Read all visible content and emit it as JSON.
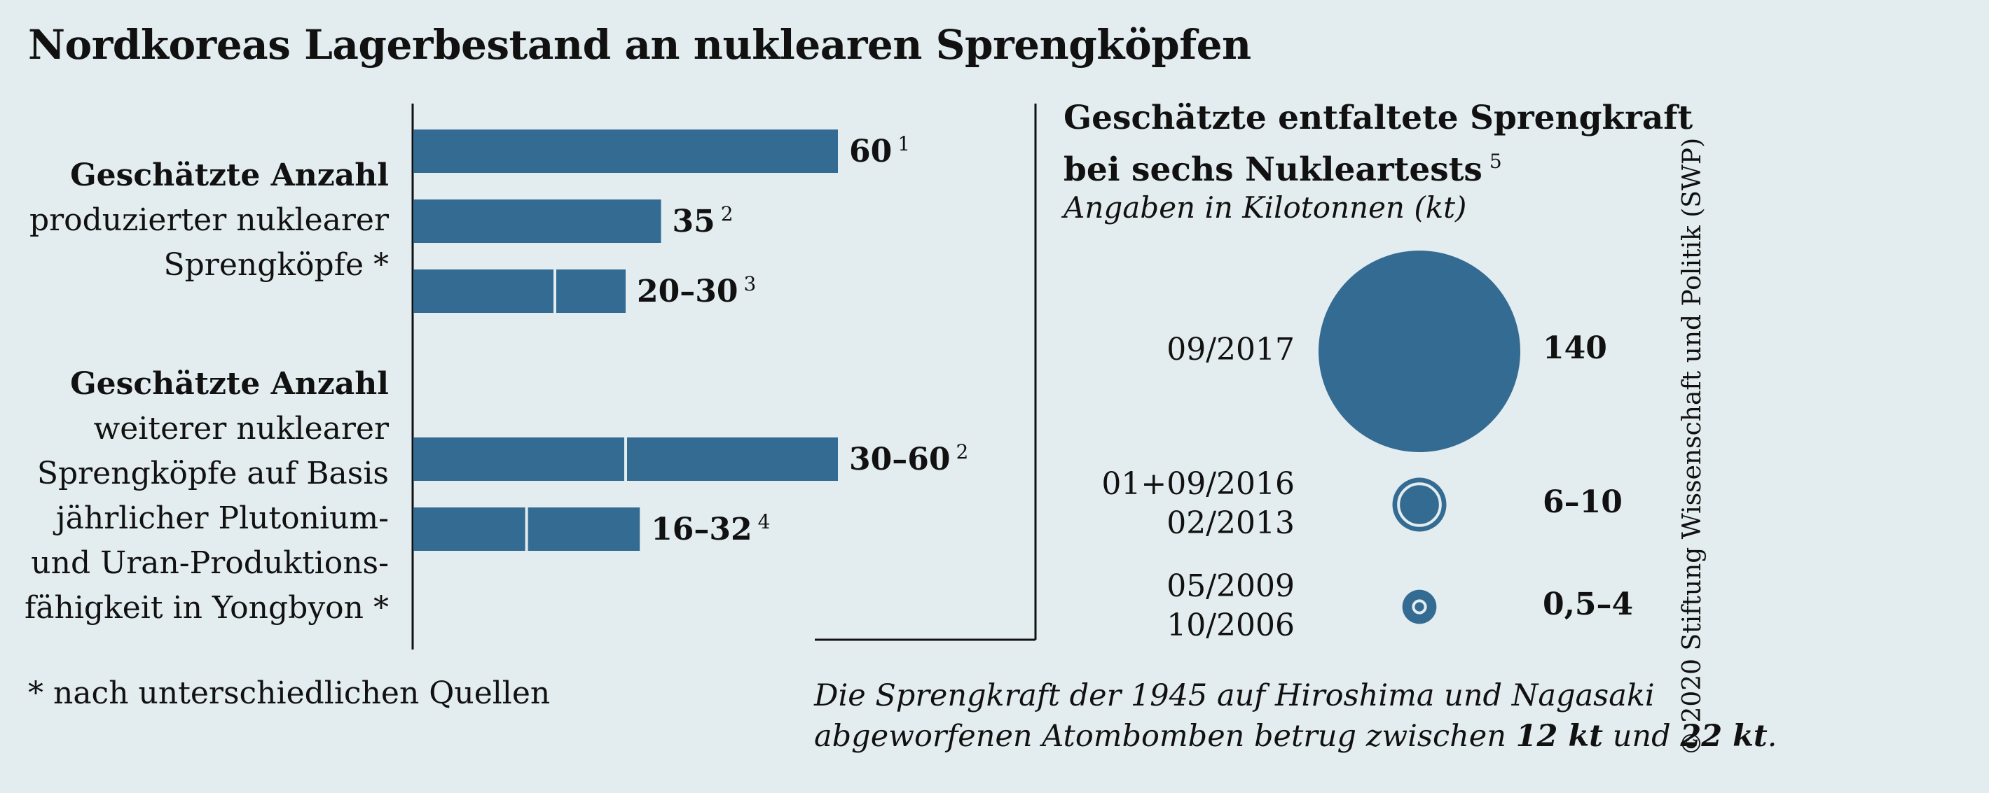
{
  "title": "Nordkoreas Lagerbestand an nuklearen Sprengköpfen",
  "left": {
    "group1": {
      "bold": "Geschätzte Anzahl",
      "lines": [
        "produzierter nuklearer",
        "Sprengköpfe *"
      ]
    },
    "group2": {
      "bold": "Geschätzte Anzahl",
      "lines": [
        "weiterer nuklearer",
        "Sprengköpfe auf Basis",
        "jährlicher Plutonium-",
        "und Uran-Produktions-",
        "fähigkeit in Yongbyon *"
      ]
    }
  },
  "right": {
    "title_line1": "Geschätzte entfaltete Sprengkraft",
    "title_line2": "bei sechs Nukleartests",
    "title_sup": "5",
    "subtitle": "Angaben in Kilotonnen (kt)",
    "rows": [
      {
        "dates": [
          "09/2017"
        ],
        "value": "140"
      },
      {
        "dates": [
          "01+09/2016",
          "02/2013"
        ],
        "value": "6–10"
      },
      {
        "dates": [
          "05/2009",
          "10/2006"
        ],
        "value": "0,5–4"
      }
    ]
  },
  "footnote": "* nach unterschiedlichen Quellen",
  "note": {
    "line1": "Die Sprengkraft der 1945 auf Hiroshima und Nagasaki",
    "line2_pre": "abgeworfenen Atombomben betrug zwischen ",
    "val1": "12 kt",
    "mid": " und ",
    "val2": "22 kt",
    "end": "."
  },
  "credit": "© 2020 Stiftung Wissenschaft und Politik (SWP)",
  "colors": {
    "bar": "#346b92",
    "background": "#e3ecef",
    "text": "#111111"
  },
  "chart_data": [
    {
      "type": "bar",
      "orientation": "horizontal",
      "xlim": [
        0,
        60
      ],
      "grid": false,
      "bars": [
        {
          "group": "produzierte",
          "low": 60,
          "high": 60,
          "label": "60",
          "sup": "1"
        },
        {
          "group": "produzierte",
          "low": 35,
          "high": 35,
          "label": "35",
          "sup": "2"
        },
        {
          "group": "produzierte",
          "low": 20,
          "high": 30,
          "label": "20–30",
          "sup": "3"
        },
        {
          "group": "weitere",
          "low": 30,
          "high": 60,
          "label": "30–60",
          "sup": "2"
        },
        {
          "group": "weitere",
          "low": 16,
          "high": 32,
          "label": "16–32",
          "sup": "4"
        }
      ]
    },
    {
      "type": "bubble",
      "unit": "kt",
      "values": [
        {
          "dates": "09/2017",
          "low": 140,
          "high": 140,
          "label": "140"
        },
        {
          "dates": "01+09/2016, 02/2013",
          "low": 6,
          "high": 10,
          "label": "6–10"
        },
        {
          "dates": "05/2009, 10/2006",
          "low": 0.5,
          "high": 4,
          "label": "0,5–4"
        }
      ]
    }
  ]
}
